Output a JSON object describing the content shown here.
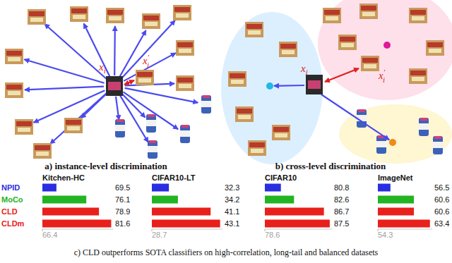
{
  "diagram": {
    "panels": [
      {
        "caption": "a) instance-level discrimination",
        "anchor_label": {
          "base": "x",
          "sub": "i"
        },
        "positive_label": {
          "base": "x",
          "sub": "i",
          "sup": "′"
        }
      },
      {
        "caption": "b) cross-level discrimination",
        "anchor_label": {
          "base": "x",
          "sub": "i"
        },
        "positive_label": {
          "base": "x",
          "sub": "i",
          "sup": "′"
        }
      }
    ]
  },
  "chart_data": [
    {
      "type": "bar",
      "orientation": "horizontal",
      "title": "Kitchen-HC",
      "categories": [
        "NPID",
        "MoCo",
        "CLD",
        "CLDm"
      ],
      "values": [
        69.5,
        76.1,
        78.9,
        81.6
      ],
      "colors": [
        "#2a2ee0",
        "#22b422",
        "#e8201c",
        "#e8201c"
      ],
      "xlim": [
        66.4,
        82
      ],
      "xticks": [
        66.4
      ],
      "data_labels": true
    },
    {
      "type": "bar",
      "orientation": "horizontal",
      "title": "CIFAR10-LT",
      "categories": [
        "NPID",
        "MoCo",
        "CLD",
        "CLDm"
      ],
      "values": [
        32.3,
        34.2,
        41.1,
        43.1
      ],
      "colors": [
        "#2a2ee0",
        "#22b422",
        "#e8201c",
        "#e8201c"
      ],
      "xlim": [
        28.7,
        43.6
      ],
      "xticks": [
        28.7
      ],
      "data_labels": true,
      "tick_labels": "x"
    },
    {
      "type": "bar",
      "orientation": "horizontal",
      "title": "CIFAR10",
      "categories": [
        "NPID",
        "MoCo",
        "CLD",
        "CLDm"
      ],
      "values": [
        80.8,
        82.6,
        86.7,
        87.5
      ],
      "colors": [
        "#2a2ee0",
        "#22b422",
        "#e8201c",
        "#e8201c"
      ],
      "xlim": [
        78.6,
        87.8
      ],
      "xticks": [
        78.6
      ],
      "data_labels": true,
      "tick_labels": "x"
    },
    {
      "type": "bar",
      "orientation": "horizontal",
      "title": "ImageNet",
      "categories": [
        "NPID",
        "MoCo",
        "CLD",
        "CLDm"
      ],
      "values": [
        56.5,
        60.6,
        60.6,
        63.4
      ],
      "colors": [
        "#2a2ee0",
        "#22b422",
        "#e8201c",
        "#e8201c"
      ],
      "xlim": [
        54.3,
        63.8
      ],
      "xticks": [
        54.3
      ],
      "data_labels": true,
      "tick_labels": "x"
    }
  ],
  "caption": "c) CLD outperforms SOTA classifiers on high-correlation, long-tail and balanced datasets"
}
